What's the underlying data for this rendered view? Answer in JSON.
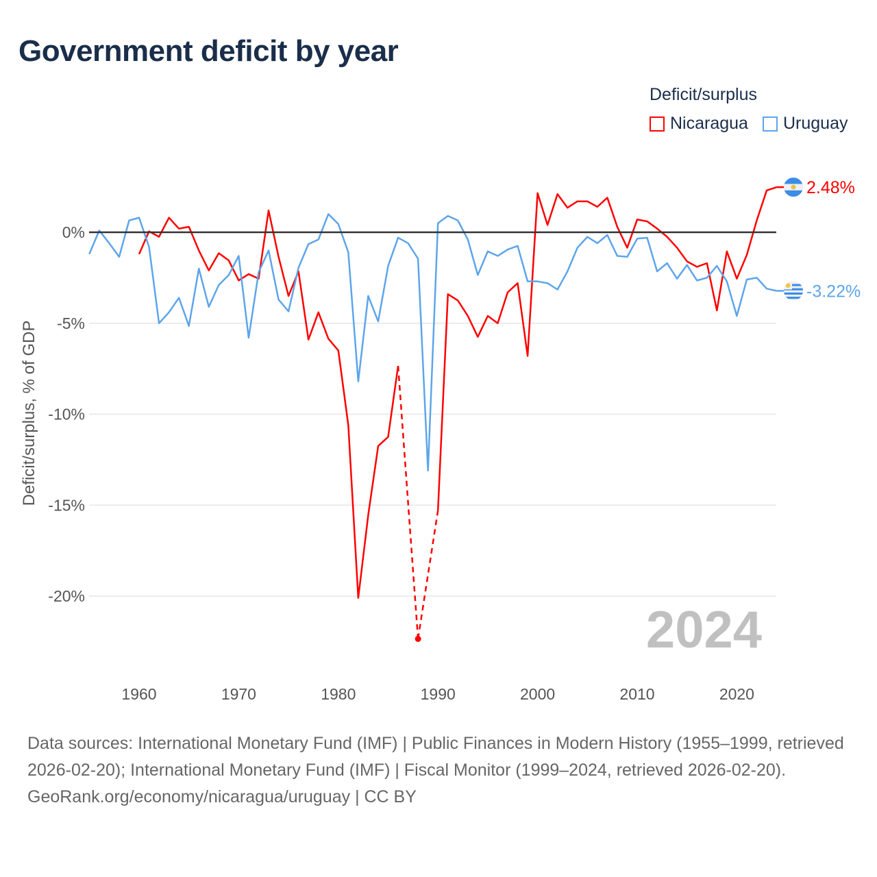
{
  "chart_data": {
    "type": "line",
    "title": "Government deficit by year",
    "ylabel": "Deficit/surplus, % of GDP",
    "xlabel": "",
    "xlim": [
      1955,
      2024
    ],
    "ylim": [
      -23.5,
      3.5
    ],
    "x_ticks": [
      1960,
      1970,
      1980,
      1990,
      2000,
      2010,
      2020
    ],
    "x_tick_labels": [
      "1960",
      "1970",
      "1980",
      "1990",
      "2000",
      "2010",
      "2020"
    ],
    "y_ticks": [
      0,
      -5,
      -10,
      -15,
      -20
    ],
    "y_tick_labels": [
      "0%",
      "-5%",
      "-10%",
      "-15%",
      "-20%"
    ],
    "legend_title": "Deficit/surplus",
    "legend_position": "top-right",
    "year_watermark": "2024",
    "series": [
      {
        "name": "Nicaragua",
        "color": "#ff0000",
        "end_label": "2.48%",
        "start_year": 1960,
        "values": [
          -1.2,
          0.05,
          -0.25,
          0.8,
          0.2,
          0.3,
          -1.0,
          -2.1,
          -1.15,
          -1.55,
          -2.65,
          -2.3,
          -2.55,
          1.2,
          -1.35,
          -3.5,
          -2.15,
          -5.9,
          -4.4,
          -5.85,
          -6.5,
          -10.6,
          -20.1,
          -15.55,
          -11.75,
          -11.25,
          -7.35,
          null,
          -22.35,
          null,
          -15.3,
          -3.4,
          -3.75,
          -4.6,
          -5.75,
          -4.6,
          -5.0,
          -3.3,
          -2.8,
          -6.8,
          2.15,
          0.4,
          2.1,
          1.35,
          1.7,
          1.7,
          1.4,
          1.9,
          0.3,
          -0.85,
          0.7,
          0.6,
          0.2,
          -0.25,
          -0.85,
          -1.6,
          -1.9,
          -1.7,
          -4.3,
          -1.05,
          -2.55,
          -1.25,
          0.65,
          2.3,
          2.48
        ]
      },
      {
        "name": "Uruguay",
        "color": "#5da5ea",
        "end_label": "-3.22%",
        "start_year": 1955,
        "values": [
          -1.2,
          0.1,
          -0.6,
          -1.35,
          0.65,
          0.8,
          -0.8,
          -5.0,
          -4.4,
          -3.6,
          -5.15,
          -2.0,
          -4.1,
          -2.9,
          -2.35,
          -1.3,
          -5.8,
          -2.2,
          -1.0,
          -3.7,
          -4.35,
          -1.95,
          -0.65,
          -0.4,
          1.0,
          0.45,
          -1.1,
          -8.2,
          -3.5,
          -4.9,
          -1.85,
          -0.3,
          -0.6,
          -1.45,
          -13.1,
          0.5,
          0.9,
          0.65,
          -0.4,
          -2.35,
          -1.05,
          -1.3,
          -0.95,
          -0.75,
          -2.7,
          -2.7,
          -2.8,
          -3.15,
          -2.15,
          -0.85,
          -0.25,
          -0.6,
          -0.15,
          -1.3,
          -1.35,
          -0.35,
          -0.3,
          -2.15,
          -1.7,
          -2.55,
          -1.8,
          -2.65,
          -2.5,
          -1.85,
          -2.7,
          -4.6,
          -2.6,
          -2.5,
          -3.1,
          -3.22
        ]
      }
    ]
  },
  "footer": {
    "sources": "Data sources: International Monetary Fund (IMF) | Public Finances in Modern History (1955–1999, retrieved 2026-02-20); International Monetary Fund (IMF) | Fiscal Monitor (1999–2024, retrieved 2026-02-20).",
    "credit": "GeoRank.org/economy/nicaragua/uruguay | CC BY"
  }
}
